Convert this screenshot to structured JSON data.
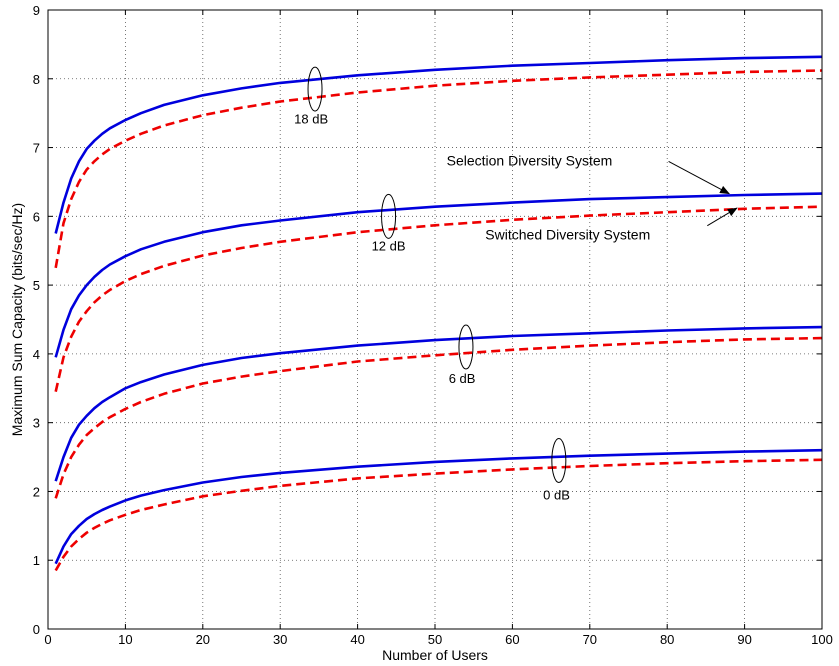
{
  "chart_data": {
    "type": "line",
    "title": "",
    "xlabel": "Number of Users",
    "ylabel": "Maximum Sum Capacity (bits/sec/Hz)",
    "xlim": [
      0,
      100
    ],
    "ylim": [
      0,
      9
    ],
    "xticks": [
      0,
      10,
      20,
      30,
      40,
      50,
      60,
      70,
      80,
      90,
      100
    ],
    "yticks": [
      0,
      1,
      2,
      3,
      4,
      5,
      6,
      7,
      8,
      9
    ],
    "grid": true,
    "x": [
      1,
      2,
      3,
      4,
      5,
      6,
      7,
      8,
      10,
      12,
      15,
      20,
      25,
      30,
      40,
      50,
      60,
      70,
      80,
      90,
      100
    ],
    "series": [
      {
        "group": "18 dB",
        "style": "solid",
        "color": "#0000dd",
        "values": [
          5.75,
          6.2,
          6.55,
          6.8,
          6.98,
          7.1,
          7.2,
          7.28,
          7.4,
          7.5,
          7.62,
          7.76,
          7.86,
          7.94,
          8.05,
          8.13,
          8.19,
          8.23,
          8.27,
          8.3,
          8.32
        ]
      },
      {
        "group": "18 dB",
        "style": "dashed",
        "color": "#ee0000",
        "values": [
          5.25,
          5.9,
          6.25,
          6.5,
          6.68,
          6.8,
          6.9,
          6.98,
          7.1,
          7.2,
          7.32,
          7.47,
          7.58,
          7.67,
          7.8,
          7.9,
          7.97,
          8.02,
          8.06,
          8.1,
          8.12
        ]
      },
      {
        "group": "12 dB",
        "style": "solid",
        "color": "#0000dd",
        "values": [
          3.95,
          4.35,
          4.65,
          4.85,
          5.0,
          5.12,
          5.22,
          5.3,
          5.42,
          5.52,
          5.63,
          5.77,
          5.87,
          5.94,
          6.06,
          6.14,
          6.2,
          6.25,
          6.28,
          6.31,
          6.33
        ]
      },
      {
        "group": "12 dB",
        "style": "dashed",
        "color": "#ee0000",
        "values": [
          3.45,
          3.95,
          4.25,
          4.47,
          4.62,
          4.75,
          4.85,
          4.93,
          5.06,
          5.16,
          5.28,
          5.43,
          5.54,
          5.63,
          5.77,
          5.87,
          5.95,
          6.01,
          6.06,
          6.11,
          6.14
        ]
      },
      {
        "group": "6 dB",
        "style": "solid",
        "color": "#0000dd",
        "values": [
          2.15,
          2.5,
          2.78,
          2.97,
          3.1,
          3.21,
          3.3,
          3.37,
          3.5,
          3.59,
          3.7,
          3.84,
          3.94,
          4.01,
          4.12,
          4.2,
          4.26,
          4.3,
          4.34,
          4.37,
          4.39
        ]
      },
      {
        "group": "6 dB",
        "style": "dashed",
        "color": "#ee0000",
        "values": [
          1.9,
          2.25,
          2.5,
          2.68,
          2.82,
          2.92,
          3.01,
          3.08,
          3.2,
          3.3,
          3.42,
          3.57,
          3.67,
          3.75,
          3.89,
          3.98,
          4.06,
          4.12,
          4.17,
          4.21,
          4.23
        ]
      },
      {
        "group": "0 dB",
        "style": "solid",
        "color": "#0000dd",
        "values": [
          0.95,
          1.2,
          1.38,
          1.5,
          1.6,
          1.67,
          1.73,
          1.78,
          1.87,
          1.94,
          2.02,
          2.13,
          2.21,
          2.27,
          2.36,
          2.43,
          2.48,
          2.52,
          2.55,
          2.58,
          2.6
        ]
      },
      {
        "group": "0 dB",
        "style": "dashed",
        "color": "#ee0000",
        "values": [
          0.85,
          1.05,
          1.2,
          1.31,
          1.4,
          1.47,
          1.53,
          1.58,
          1.66,
          1.73,
          1.81,
          1.93,
          2.01,
          2.08,
          2.19,
          2.26,
          2.32,
          2.37,
          2.41,
          2.44,
          2.46
        ]
      }
    ],
    "annotations": [
      {
        "text": "18 dB",
        "x": 34.5,
        "y": 7.75,
        "ellipse_x": 34.5,
        "ellipse_y": 7.85,
        "label_x": 34,
        "label_y": 7.35
      },
      {
        "text": "12 dB",
        "x": 44,
        "y": 6.0,
        "ellipse_x": 44,
        "ellipse_y": 6.0,
        "label_x": 44,
        "label_y": 5.5
      },
      {
        "text": "6 dB",
        "x": 54,
        "y": 4.1,
        "ellipse_x": 54,
        "ellipse_y": 4.1,
        "label_x": 53.5,
        "label_y": 3.58
      },
      {
        "text": "0 dB",
        "x": 66,
        "y": 2.45,
        "ellipse_x": 66,
        "ellipse_y": 2.45,
        "label_x": 65.7,
        "label_y": 1.88
      }
    ],
    "arrow_labels": [
      {
        "text": "Selection Diversity System",
        "label_x": 51.5,
        "label_y": 6.74,
        "tip_x": 88.0,
        "tip_y": 6.33
      },
      {
        "text": "Switched Diversity System",
        "label_x": 56.5,
        "label_y": 5.66,
        "tip_x": 89.0,
        "tip_y": 6.12
      }
    ]
  }
}
